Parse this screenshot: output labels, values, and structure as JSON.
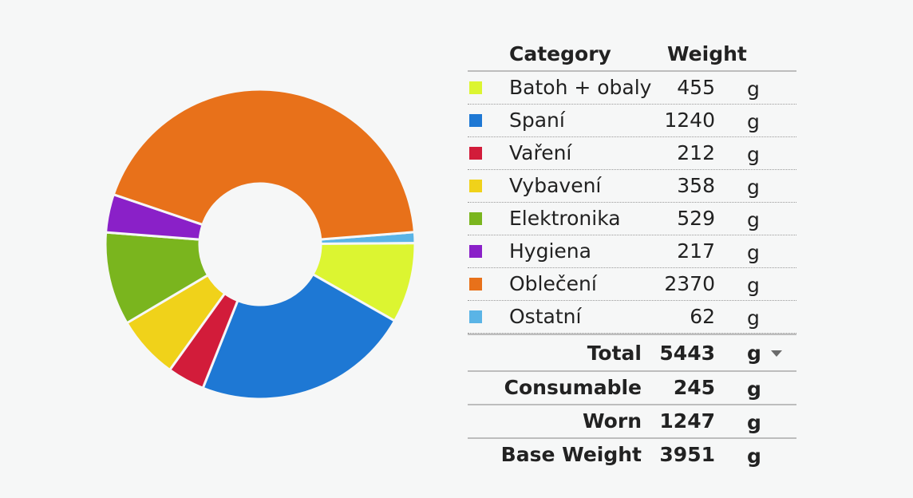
{
  "chart_data": {
    "type": "pie",
    "style": "donut",
    "header": {
      "category": "Category",
      "weight": "Weight"
    },
    "unit": "g",
    "categories": [
      {
        "name": "Batoh + obaly",
        "value": 455,
        "color": "#dcf531"
      },
      {
        "name": "Spaní",
        "value": 1240,
        "color": "#1e78d4"
      },
      {
        "name": "Vaření",
        "value": 212,
        "color": "#d21c3a"
      },
      {
        "name": "Vybavení",
        "value": 358,
        "color": "#f0d21a"
      },
      {
        "name": "Elektronika",
        "value": 529,
        "color": "#7ab51e"
      },
      {
        "name": "Hygiena",
        "value": 217,
        "color": "#8a20c8"
      },
      {
        "name": "Oblečení",
        "value": 2370,
        "color": "#e8711a"
      },
      {
        "name": "Ostatní",
        "value": 62,
        "color": "#5ab4e6"
      }
    ],
    "totals": [
      {
        "label": "Total",
        "value": 5443,
        "unit": "g"
      },
      {
        "label": "Consumable",
        "value": 245,
        "unit": "g"
      },
      {
        "label": "Worn",
        "value": 1247,
        "unit": "g"
      },
      {
        "label": "Base Weight",
        "value": 3951,
        "unit": "g"
      }
    ]
  }
}
